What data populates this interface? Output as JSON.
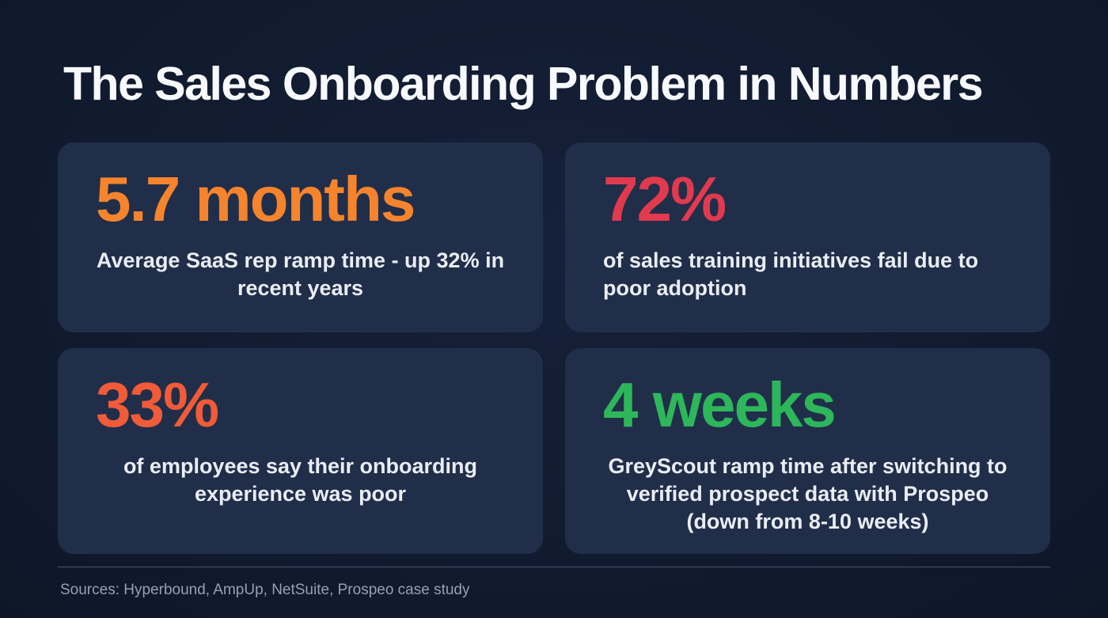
{
  "slide": {
    "title": "The Sales Onboarding Problem in Numbers",
    "cards": [
      {
        "stat": "5.7 months",
        "color": "#f5842d",
        "description": "Average SaaS rep ramp time - up 32% in recent years"
      },
      {
        "stat": "72%",
        "color": "#e13a4e",
        "description": "of sales training initiatives fail due to poor adoption"
      },
      {
        "stat": "33%",
        "color": "#f15b38",
        "description": "of employees say their onboarding experience was poor"
      },
      {
        "stat": "4 weeks",
        "color": "#2db75a",
        "description": "GreyScout ramp time after switching to verified prospect data with Prospeo (down from 8-10 weeks)"
      }
    ],
    "footer": {
      "sources": "Sources: Hyperbound, AmpUp, NetSuite, Prospeo case study"
    }
  }
}
